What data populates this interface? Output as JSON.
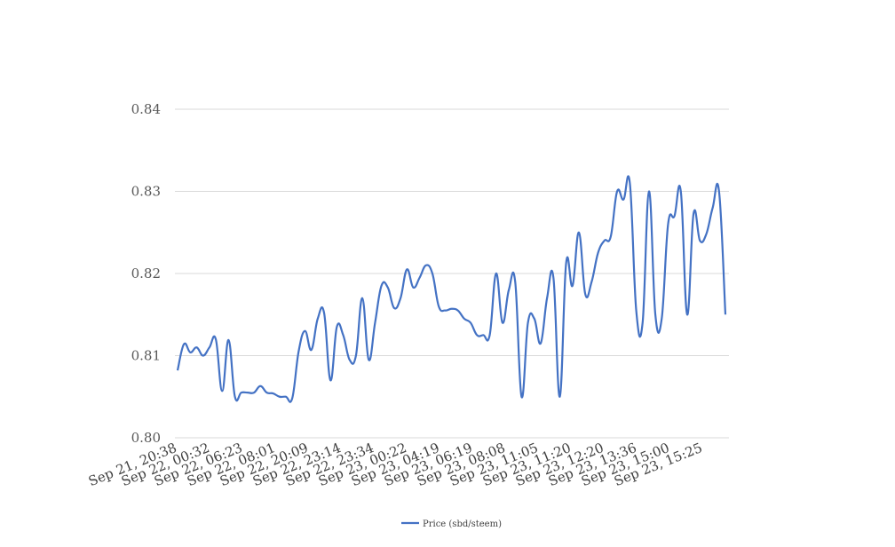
{
  "chart_data": {
    "type": "line",
    "title": "",
    "xlabel": "",
    "ylabel": "",
    "ylim": [
      0.8,
      0.84
    ],
    "yticks": [
      "0.80",
      "0.81",
      "0.82",
      "0.83",
      "0.84"
    ],
    "grid": true,
    "legend_position": "bottom",
    "x_tick_labels": [
      "Sep 21, 20:38",
      "Sep 22, 00:32",
      "Sep 22, 06:23",
      "Sep 22, 08:01",
      "Sep 22, 20:09",
      "Sep 22, 23:14",
      "Sep 22, 23:34",
      "Sep 23, 00:22",
      "Sep 23, 04:19",
      "Sep 23, 06:19",
      "Sep 23, 08:08",
      "Sep 23, 11:05",
      "Sep 23, 11:20",
      "Sep 23, 12:20",
      "Sep 23, 13:36",
      "Sep 23, 15:00",
      "Sep 23, 15:25"
    ],
    "series": [
      {
        "name": "Price (sbd/steem)",
        "color": "#4472c4",
        "values": [
          0.8082,
          0.8114,
          0.8104,
          0.811,
          0.81,
          0.811,
          0.812,
          0.8057,
          0.8119,
          0.805,
          0.8055,
          0.8055,
          0.8055,
          0.8063,
          0.8055,
          0.8054,
          0.805,
          0.805,
          0.8048,
          0.8105,
          0.813,
          0.8107,
          0.8145,
          0.8152,
          0.807,
          0.8135,
          0.8125,
          0.8095,
          0.81,
          0.817,
          0.8095,
          0.814,
          0.8185,
          0.8183,
          0.8158,
          0.817,
          0.8205,
          0.8183,
          0.8195,
          0.821,
          0.82,
          0.816,
          0.8155,
          0.8157,
          0.8155,
          0.8145,
          0.814,
          0.8125,
          0.8125,
          0.8125,
          0.82,
          0.814,
          0.818,
          0.819,
          0.805,
          0.814,
          0.8145,
          0.8115,
          0.817,
          0.8195,
          0.805,
          0.8213,
          0.8185,
          0.825,
          0.8175,
          0.819,
          0.8225,
          0.824,
          0.8245,
          0.83,
          0.829,
          0.831,
          0.8155,
          0.814,
          0.83,
          0.815,
          0.8145,
          0.826,
          0.827,
          0.83,
          0.815,
          0.8273,
          0.824,
          0.8248,
          0.828,
          0.83,
          0.815
        ]
      }
    ]
  }
}
